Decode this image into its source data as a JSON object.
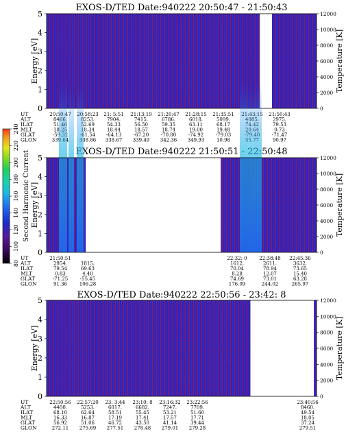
{
  "colors": {
    "background_fill": "#3a1fb0",
    "noise_red": "#b0243a",
    "noise_blue": "#1f3fe0",
    "cbar": [
      "#000000",
      "#3b0a5c",
      "#5a1a9a",
      "#1a2acc",
      "#1f6cf0",
      "#19b8e6",
      "#16d2b4",
      "#1fd05a",
      "#7edc1e",
      "#e6e61a",
      "#f0a21a",
      "#ff3a1a"
    ]
  },
  "colorbar": {
    "label": "Second Harmonic Current",
    "ticks": [
      "80",
      "100",
      "120",
      "140",
      "160",
      "180",
      "200",
      "220",
      "240"
    ]
  },
  "chart_data": [
    {
      "type": "heatmap",
      "title": "EXOS-D/TED",
      "date_label": "Date:940222",
      "time_range": "20:50:47 - 21:50:43",
      "ylabel": "Energy [eV]",
      "y2label": "Temperature [K]",
      "ylim": [
        0,
        5
      ],
      "y2lim": [
        0,
        12000
      ],
      "yticks": [
        "0",
        "1",
        "2",
        "3",
        "4",
        "5"
      ],
      "y2ticks": [
        "0",
        "2000",
        "4000",
        "6000",
        "8000",
        "10000",
        "12000"
      ],
      "data_coverage": [
        [
          0.0,
          0.79
        ],
        [
          0.835,
          1.0
        ]
      ],
      "orbit": {
        "labels": [
          "UT",
          "ALT",
          "ILAT",
          "MLT",
          "GLAT",
          "GLON"
        ],
        "columns": [
          [
            "20:50:47",
            "8466.",
            "51.46",
            "18.25",
            "-59.32",
            "339.64"
          ],
          [
            "20:58:23",
            "8253.",
            "52.69",
            "18.34",
            "-61.54",
            "338.86"
          ],
          [
            "21: 5:51",
            "7904.",
            "54.33",
            "18.44",
            "-64.13",
            "338.67"
          ],
          [
            "21:13:19",
            "7415.",
            "56.50",
            "18.57",
            "-67.20",
            "339.49"
          ],
          [
            "21:20:47",
            "6786.",
            "59.35",
            "18.74",
            "-70.80",
            "342.36"
          ],
          [
            "21:28:15",
            "6018.",
            "63.11",
            "19.00",
            "-74.92",
            "349.93"
          ],
          [
            "21:35:51",
            "5099.",
            "68.17",
            "19.48",
            "-79.03",
            "10.98"
          ],
          [
            "21:43:15",
            "4085.",
            "74.42",
            "20.64",
            "-79.40",
            "55.77"
          ],
          [
            "21:50:43",
            "2975.",
            "79.53",
            "0.73",
            "-71.47",
            "90.97"
          ]
        ]
      }
    },
    {
      "type": "heatmap",
      "title": "EXOS-D/TED",
      "date_label": "Date:940222",
      "time_range": "21:50:51 - 22:50:48",
      "ylabel": "Energy [eV]",
      "y2label": "Temperature [K]",
      "ylim": [
        0,
        5
      ],
      "y2lim": [
        0,
        12000
      ],
      "yticks": [
        "0",
        "1",
        "2",
        "3",
        "4",
        "5"
      ],
      "y2ticks": [
        "0",
        "2000",
        "4000",
        "6000",
        "8000",
        "10000",
        "12000"
      ],
      "data_coverage": [
        [
          0.0,
          0.145
        ],
        [
          0.645,
          1.0
        ]
      ],
      "orbit": {
        "labels": [
          "UT",
          "ALT",
          "ILAT",
          "MLT",
          "GLAT",
          "GLON"
        ],
        "columns": [
          [
            "21:50:51",
            "2954.",
            "79.54",
            "0.83",
            "-71.25",
            "91.36"
          ],
          [
            "",
            "1815.",
            "69.63",
            "4.40",
            "-55.45",
            "106.28"
          ],
          [
            "22:32: 0",
            "1612.",
            "70.04",
            "8.28",
            "74.69",
            "176.09"
          ],
          [
            "22:38:48",
            "2611.",
            "78.94",
            "12.07",
            "73.01",
            "244.02"
          ],
          [
            "22:45:36",
            "3632.",
            "73.65",
            "15.40",
            "63.28",
            "265.97"
          ]
        ]
      }
    },
    {
      "type": "heatmap",
      "title": "EXOS-D/TED",
      "date_label": "Date:940222",
      "time_range": "22:50:56 - 23:42: 8",
      "ylabel": "Energy [eV]",
      "y2label": "Temperature [K]",
      "ylim": [
        0,
        5
      ],
      "y2lim": [
        0,
        12000
      ],
      "yticks": [
        "0",
        "1",
        "2",
        "3",
        "4",
        "5"
      ],
      "y2ticks": [
        "0",
        "2000",
        "4000",
        "6000",
        "8000",
        "10000",
        "12000"
      ],
      "data_coverage": [
        [
          0.0,
          0.755
        ],
        [
          0.99,
          1.0
        ]
      ],
      "orbit": {
        "labels": [
          "UT",
          "ALT",
          "ILAT",
          "MLT",
          "GLAT",
          "GLON"
        ],
        "columns": [
          [
            "22:50:56",
            "4400.",
            "68.10",
            "16.33",
            "56.92",
            "272.11"
          ],
          [
            "22:57:20",
            "5253.",
            "62.64",
            "16.87",
            "51.06",
            "275.69"
          ],
          [
            "23: 3:44",
            "6017.",
            "58.51",
            "17.19",
            "46.72",
            "277.51"
          ],
          [
            "23:10: 8",
            "6682.",
            "55.45",
            "17.41",
            "43.50",
            "278.48"
          ],
          [
            "23:16:32",
            "7247.",
            "53.21",
            "17.57",
            "41.14",
            "279.01"
          ],
          [
            "23:22:56",
            "7709.",
            "51.60",
            "17.71",
            "39.44",
            "279.28"
          ],
          [
            "23:40:56",
            "8460.",
            "49.54",
            "18.05",
            "37.24",
            "279.51"
          ]
        ]
      }
    }
  ]
}
